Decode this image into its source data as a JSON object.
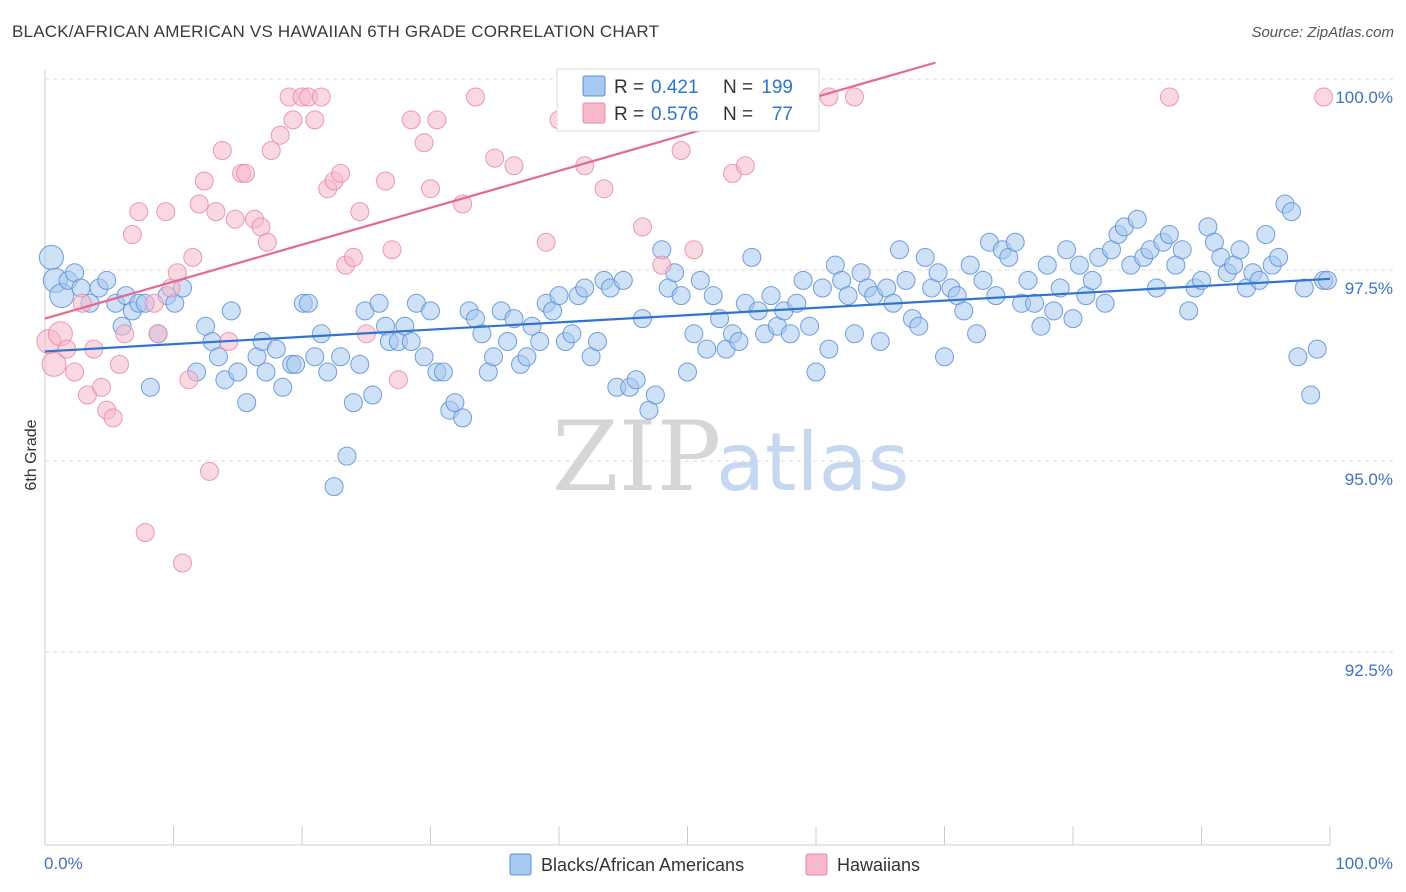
{
  "header": {
    "title": "BLACK/AFRICAN AMERICAN VS HAWAIIAN 6TH GRADE CORRELATION CHART",
    "source": "Source: ZipAtlas.com"
  },
  "watermark": {
    "zip": "ZIP",
    "atlas": "atlas"
  },
  "stats_box": {
    "rows": [
      {
        "r_label": "R =",
        "r_value": "0.421",
        "n_label": "N =",
        "n_value": "199",
        "color": "#a7c8f0"
      },
      {
        "r_label": "R =",
        "r_value": "0.576",
        "n_label": "N =",
        "n_value": "77",
        "color": "#f6b8ca"
      }
    ]
  },
  "legend": [
    {
      "label": "Blacks/African Americans",
      "color": "#a7c8f0"
    },
    {
      "label": "Hawaiians",
      "color": "#f6b8ca"
    }
  ],
  "colors": {
    "blue_fill": "#a7c8f0",
    "blue_stroke": "#5b8fd4",
    "blue_line": "#2f74d0",
    "pink_fill": "#f6b8ca",
    "pink_stroke": "#e88aa8",
    "pink_line": "#e36a92",
    "axis_text": "#3d72c4"
  },
  "chart_data": {
    "type": "scatter",
    "title": "BLACK/AFRICAN AMERICAN VS HAWAIIAN 6TH GRADE CORRELATION CHART",
    "xlabel": "",
    "ylabel": "6th Grade",
    "xlim": [
      0,
      100
    ],
    "ylim": [
      89.5,
      100.45
    ],
    "x_tick_labels": [
      "0.0%",
      "100.0%"
    ],
    "y_ticks": [
      {
        "value": 100.0,
        "label": "100.0%"
      },
      {
        "value": 97.5,
        "label": "97.5%"
      },
      {
        "value": 95.0,
        "label": "95.0%"
      },
      {
        "value": 92.5,
        "label": "92.5%"
      }
    ],
    "grid": "horizontal dashed",
    "legend_position": "bottom-center",
    "series": [
      {
        "name": "Blacks/African Americans",
        "color": "#a7c8f0",
        "trend": [
          [
            0,
            96.67
          ],
          [
            100,
            97.62
          ]
        ],
        "points": [
          [
            0.5,
            97.9
          ],
          [
            0.8,
            97.6
          ],
          [
            1.3,
            97.4
          ],
          [
            1.8,
            97.6
          ],
          [
            2.3,
            97.7
          ],
          [
            2.8,
            97.5
          ],
          [
            3.5,
            97.3
          ],
          [
            4.2,
            97.5
          ],
          [
            4.8,
            97.6
          ],
          [
            5.5,
            97.3
          ],
          [
            6.0,
            97.0
          ],
          [
            6.3,
            97.4
          ],
          [
            6.8,
            97.2
          ],
          [
            7.3,
            97.3
          ],
          [
            7.8,
            97.3
          ],
          [
            8.2,
            96.2
          ],
          [
            8.8,
            96.9
          ],
          [
            9.5,
            97.4
          ],
          [
            10.1,
            97.3
          ],
          [
            10.7,
            97.5
          ],
          [
            11.8,
            96.4
          ],
          [
            12.5,
            97.0
          ],
          [
            13.0,
            96.8
          ],
          [
            13.5,
            96.6
          ],
          [
            14.0,
            96.3
          ],
          [
            14.5,
            97.2
          ],
          [
            15.0,
            96.4
          ],
          [
            15.7,
            96.0
          ],
          [
            16.5,
            96.6
          ],
          [
            16.9,
            96.8
          ],
          [
            17.2,
            96.4
          ],
          [
            18.0,
            96.7
          ],
          [
            18.5,
            96.2
          ],
          [
            19.2,
            96.5
          ],
          [
            19.5,
            96.5
          ],
          [
            20.1,
            97.3
          ],
          [
            20.5,
            97.3
          ],
          [
            21.0,
            96.6
          ],
          [
            21.5,
            96.9
          ],
          [
            22.0,
            96.4
          ],
          [
            22.5,
            94.9
          ],
          [
            23.0,
            96.6
          ],
          [
            23.5,
            95.3
          ],
          [
            24.0,
            96.0
          ],
          [
            24.5,
            96.5
          ],
          [
            24.9,
            97.2
          ],
          [
            25.5,
            96.1
          ],
          [
            26.0,
            97.3
          ],
          [
            26.5,
            97.0
          ],
          [
            26.8,
            96.8
          ],
          [
            27.5,
            96.8
          ],
          [
            28.0,
            97.0
          ],
          [
            28.5,
            96.8
          ],
          [
            28.9,
            97.3
          ],
          [
            29.5,
            96.6
          ],
          [
            30.0,
            97.2
          ],
          [
            30.5,
            96.4
          ],
          [
            31.0,
            96.4
          ],
          [
            31.5,
            95.9
          ],
          [
            31.9,
            96.0
          ],
          [
            32.5,
            95.8
          ],
          [
            33.0,
            97.2
          ],
          [
            33.5,
            97.1
          ],
          [
            34.0,
            96.9
          ],
          [
            34.5,
            96.4
          ],
          [
            34.9,
            96.6
          ],
          [
            35.5,
            97.2
          ],
          [
            36.0,
            96.8
          ],
          [
            36.5,
            97.1
          ],
          [
            37.0,
            96.5
          ],
          [
            37.5,
            96.6
          ],
          [
            37.9,
            97.0
          ],
          [
            38.5,
            96.8
          ],
          [
            39.0,
            97.3
          ],
          [
            39.5,
            97.2
          ],
          [
            40.0,
            97.4
          ],
          [
            40.5,
            96.8
          ],
          [
            41.0,
            96.9
          ],
          [
            41.5,
            97.4
          ],
          [
            42.0,
            97.5
          ],
          [
            42.5,
            96.6
          ],
          [
            43.0,
            96.8
          ],
          [
            43.5,
            97.6
          ],
          [
            44.0,
            97.5
          ],
          [
            44.5,
            96.2
          ],
          [
            45.0,
            97.6
          ],
          [
            45.5,
            96.2
          ],
          [
            46.0,
            96.3
          ],
          [
            46.5,
            97.1
          ],
          [
            47.0,
            95.9
          ],
          [
            47.5,
            96.1
          ],
          [
            48.0,
            98.0
          ],
          [
            48.5,
            97.5
          ],
          [
            49.0,
            97.7
          ],
          [
            49.5,
            97.4
          ],
          [
            50.0,
            96.4
          ],
          [
            50.5,
            96.9
          ],
          [
            51.0,
            97.6
          ],
          [
            51.5,
            96.7
          ],
          [
            52.0,
            97.4
          ],
          [
            52.5,
            97.1
          ],
          [
            53.0,
            96.7
          ],
          [
            53.5,
            96.9
          ],
          [
            54.0,
            96.8
          ],
          [
            54.5,
            97.3
          ],
          [
            55.0,
            97.9
          ],
          [
            55.5,
            97.2
          ],
          [
            56.0,
            96.9
          ],
          [
            56.5,
            97.4
          ],
          [
            57.0,
            97.0
          ],
          [
            57.5,
            97.2
          ],
          [
            58.0,
            96.9
          ],
          [
            58.5,
            97.3
          ],
          [
            59.0,
            97.6
          ],
          [
            59.5,
            97.0
          ],
          [
            60.0,
            96.4
          ],
          [
            60.5,
            97.5
          ],
          [
            61.0,
            96.7
          ],
          [
            61.5,
            97.8
          ],
          [
            62.0,
            97.6
          ],
          [
            62.5,
            97.4
          ],
          [
            63.0,
            96.9
          ],
          [
            63.5,
            97.7
          ],
          [
            64.0,
            97.5
          ],
          [
            64.5,
            97.4
          ],
          [
            65.0,
            96.8
          ],
          [
            65.5,
            97.5
          ],
          [
            66.0,
            97.3
          ],
          [
            66.5,
            98.0
          ],
          [
            67.0,
            97.6
          ],
          [
            67.5,
            97.1
          ],
          [
            68.0,
            97.0
          ],
          [
            68.5,
            97.9
          ],
          [
            69.0,
            97.5
          ],
          [
            69.5,
            97.7
          ],
          [
            70.0,
            96.6
          ],
          [
            70.5,
            97.5
          ],
          [
            71.0,
            97.4
          ],
          [
            71.5,
            97.2
          ],
          [
            72.0,
            97.8
          ],
          [
            72.5,
            96.9
          ],
          [
            73.0,
            97.6
          ],
          [
            73.5,
            98.1
          ],
          [
            74.0,
            97.4
          ],
          [
            74.5,
            98.0
          ],
          [
            75.0,
            97.9
          ],
          [
            75.5,
            98.1
          ],
          [
            76.0,
            97.3
          ],
          [
            76.5,
            97.6
          ],
          [
            77.0,
            97.3
          ],
          [
            77.5,
            97.0
          ],
          [
            78.0,
            97.8
          ],
          [
            78.5,
            97.2
          ],
          [
            79.0,
            97.5
          ],
          [
            79.5,
            98.0
          ],
          [
            80.0,
            97.1
          ],
          [
            80.5,
            97.8
          ],
          [
            81.0,
            97.4
          ],
          [
            81.5,
            97.6
          ],
          [
            82.0,
            97.9
          ],
          [
            82.5,
            97.3
          ],
          [
            83.0,
            98.0
          ],
          [
            83.5,
            98.2
          ],
          [
            84.0,
            98.3
          ],
          [
            84.5,
            97.8
          ],
          [
            85.0,
            98.4
          ],
          [
            85.5,
            97.9
          ],
          [
            86.0,
            98.0
          ],
          [
            86.5,
            97.5
          ],
          [
            87.0,
            98.1
          ],
          [
            87.5,
            98.2
          ],
          [
            88.0,
            97.8
          ],
          [
            88.5,
            98.0
          ],
          [
            89.0,
            97.2
          ],
          [
            89.5,
            97.5
          ],
          [
            90.0,
            97.6
          ],
          [
            90.5,
            98.3
          ],
          [
            91.0,
            98.1
          ],
          [
            91.5,
            97.9
          ],
          [
            92.0,
            97.7
          ],
          [
            92.5,
            97.8
          ],
          [
            93.0,
            98.0
          ],
          [
            93.5,
            97.5
          ],
          [
            94.0,
            97.7
          ],
          [
            94.5,
            97.6
          ],
          [
            95.0,
            98.2
          ],
          [
            95.5,
            97.8
          ],
          [
            96.0,
            97.9
          ],
          [
            96.5,
            98.6
          ],
          [
            97.0,
            98.5
          ],
          [
            97.5,
            96.6
          ],
          [
            98.0,
            97.5
          ],
          [
            98.5,
            96.1
          ],
          [
            99.0,
            96.7
          ],
          [
            99.5,
            97.6
          ],
          [
            99.8,
            97.6
          ]
        ]
      },
      {
        "name": "Hawaiians",
        "color": "#f6b8ca",
        "trend": [
          [
            0,
            97.1
          ],
          [
            69.3,
            100.45
          ]
        ],
        "points": [
          [
            0.3,
            96.8
          ],
          [
            0.7,
            96.5
          ],
          [
            1.2,
            96.9
          ],
          [
            1.7,
            96.7
          ],
          [
            2.3,
            96.4
          ],
          [
            2.9,
            97.3
          ],
          [
            3.3,
            96.1
          ],
          [
            3.8,
            96.7
          ],
          [
            4.4,
            96.2
          ],
          [
            4.8,
            95.9
          ],
          [
            5.3,
            95.8
          ],
          [
            5.8,
            96.5
          ],
          [
            6.2,
            96.9
          ],
          [
            6.8,
            98.2
          ],
          [
            7.3,
            98.5
          ],
          [
            7.8,
            94.3
          ],
          [
            8.5,
            97.3
          ],
          [
            8.8,
            96.9
          ],
          [
            9.4,
            98.5
          ],
          [
            9.8,
            97.5
          ],
          [
            10.3,
            97.7
          ],
          [
            10.7,
            93.9
          ],
          [
            11.2,
            96.3
          ],
          [
            11.5,
            97.9
          ],
          [
            12.0,
            98.6
          ],
          [
            12.4,
            98.9
          ],
          [
            12.8,
            95.1
          ],
          [
            13.3,
            98.5
          ],
          [
            13.8,
            99.3
          ],
          [
            14.3,
            96.8
          ],
          [
            14.8,
            98.4
          ],
          [
            15.3,
            99.0
          ],
          [
            15.6,
            99.0
          ],
          [
            16.3,
            98.4
          ],
          [
            16.8,
            98.3
          ],
          [
            17.3,
            98.1
          ],
          [
            17.6,
            99.3
          ],
          [
            18.3,
            99.5
          ],
          [
            19.0,
            100.0
          ],
          [
            19.3,
            99.7
          ],
          [
            20.0,
            100.0
          ],
          [
            20.5,
            100.0
          ],
          [
            21.0,
            99.7
          ],
          [
            21.5,
            100.0
          ],
          [
            22.0,
            98.8
          ],
          [
            22.5,
            98.9
          ],
          [
            23.0,
            99.0
          ],
          [
            23.4,
            97.8
          ],
          [
            24.0,
            97.9
          ],
          [
            24.5,
            98.5
          ],
          [
            25.0,
            96.9
          ],
          [
            26.5,
            98.9
          ],
          [
            27.0,
            98.0
          ],
          [
            27.5,
            96.3
          ],
          [
            28.5,
            99.7
          ],
          [
            29.5,
            99.4
          ],
          [
            30.0,
            98.8
          ],
          [
            30.5,
            99.7
          ],
          [
            32.5,
            98.6
          ],
          [
            33.5,
            100.0
          ],
          [
            35.0,
            99.2
          ],
          [
            36.5,
            99.1
          ],
          [
            39.0,
            98.1
          ],
          [
            40.0,
            99.7
          ],
          [
            42.0,
            99.1
          ],
          [
            43.5,
            98.8
          ],
          [
            46.5,
            98.3
          ],
          [
            48.0,
            97.8
          ],
          [
            49.5,
            99.3
          ],
          [
            50.5,
            98.0
          ],
          [
            53.5,
            99.0
          ],
          [
            54.5,
            99.1
          ],
          [
            57.0,
            100.0
          ],
          [
            61.0,
            100.0
          ],
          [
            63.0,
            100.0
          ],
          [
            87.5,
            100.0
          ],
          [
            99.5,
            100.0
          ]
        ]
      }
    ]
  }
}
